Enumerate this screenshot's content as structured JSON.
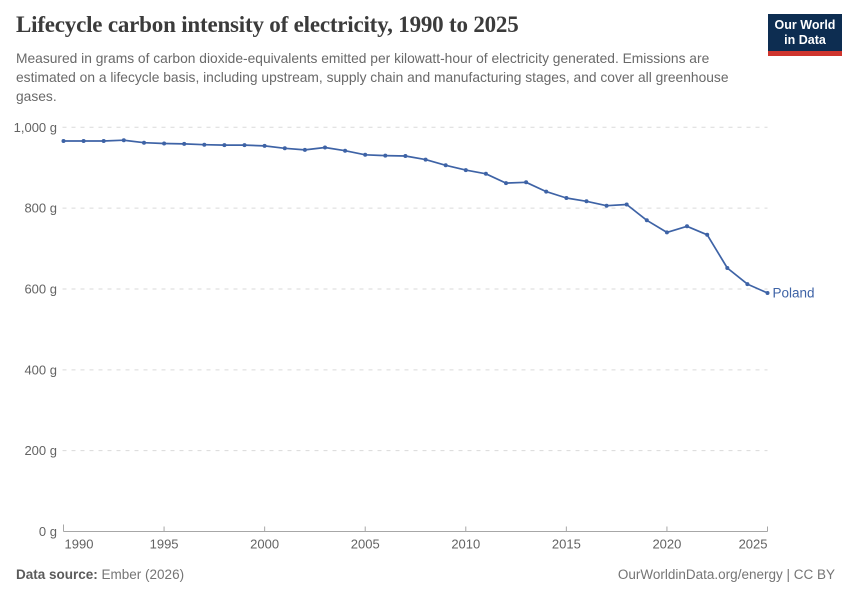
{
  "header": {
    "title": "Lifecycle carbon intensity of electricity, 1990 to 2025",
    "subtitle": "Measured in grams of carbon dioxide-equivalents emitted per kilowatt-hour of electricity generated. Emissions are estimated on a lifecycle basis, including upstream, supply chain and manufacturing stages, and cover all greenhouse gases.",
    "logo": {
      "line1": "Our World",
      "line2": "in Data"
    }
  },
  "chart_data": {
    "type": "line",
    "title": "Lifecycle carbon intensity of electricity, 1990 to 2025",
    "x": [
      1990,
      1991,
      1992,
      1993,
      1994,
      1995,
      1996,
      1997,
      1998,
      1999,
      2000,
      2001,
      2002,
      2003,
      2004,
      2005,
      2006,
      2007,
      2008,
      2009,
      2010,
      2011,
      2012,
      2013,
      2014,
      2015,
      2016,
      2017,
      2018,
      2019,
      2020,
      2021,
      2022,
      2023,
      2024,
      2025
    ],
    "series": [
      {
        "name": "Poland",
        "color": "#3e63a6",
        "values": [
          966,
          966,
          966,
          968,
          962,
          960,
          959,
          957,
          956,
          956,
          954,
          948,
          944,
          950,
          942,
          932,
          930,
          929,
          920,
          906,
          894,
          885,
          862,
          864,
          841,
          825,
          817,
          806,
          809,
          770,
          740,
          755,
          734,
          652,
          612,
          590
        ]
      }
    ],
    "xlabel": "",
    "ylabel": "",
    "unit": "g",
    "ylim": [
      0,
      1000
    ],
    "xlim": [
      1990,
      2025
    ],
    "yticks": [
      0,
      200,
      400,
      600,
      800,
      1000
    ],
    "ytick_labels": [
      "0 g",
      "200 g",
      "400 g",
      "600 g",
      "800 g",
      "1,000 g"
    ],
    "xticks": [
      1990,
      1995,
      2000,
      2005,
      2010,
      2015,
      2020,
      2025
    ],
    "grid": "horizontal-dashed",
    "legend": "end-of-line-label"
  },
  "footer": {
    "source_label": "Data source:",
    "source_value": " Ember (2026)",
    "right_text": "OurWorldinData.org/energy | CC BY"
  },
  "colors": {
    "line": "#3e63a6",
    "grid": "#dadada",
    "axis": "#a7a7a7",
    "tick_text": "#636363",
    "logo_bg": "#0d2d51",
    "logo_bar": "#cf352e"
  }
}
